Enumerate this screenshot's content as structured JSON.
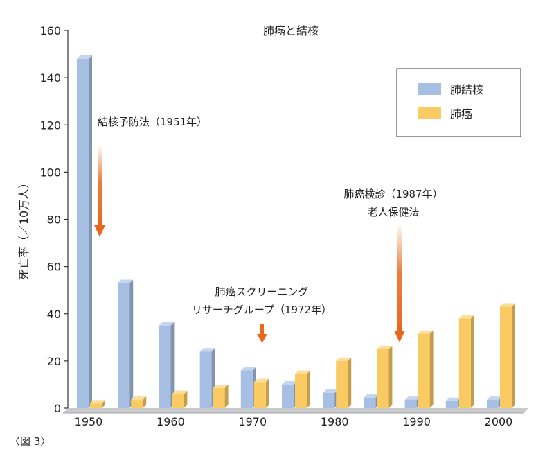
{
  "chart_data": {
    "type": "bar",
    "title": "肺癌と結核",
    "ylabel": "死亡率（／10万人）",
    "xlabel": "",
    "ylim": [
      0,
      160
    ],
    "yticks": [
      0,
      20,
      40,
      60,
      80,
      100,
      120,
      140,
      160
    ],
    "xtick_labels": [
      "1950",
      "1960",
      "1970",
      "1980",
      "1990",
      "2000"
    ],
    "categories": [
      "1950",
      "1955",
      "1960",
      "1965",
      "1970",
      "1975",
      "1980",
      "1985",
      "1990",
      "1995",
      "2000"
    ],
    "series": [
      {
        "name": "肺結核",
        "color": "#a6bfe3",
        "values": [
          148,
          53,
          35,
          24,
          16,
          10,
          6.5,
          4.5,
          3.5,
          3,
          3.5
        ]
      },
      {
        "name": "肺癌",
        "color": "#fbcb63",
        "values": [
          2,
          3.5,
          6,
          8.5,
          11,
          14.5,
          20,
          25,
          31.5,
          38,
          43
        ]
      }
    ],
    "legend_position": "top-right",
    "grid": false,
    "annotations": [
      {
        "lines": [
          "結核予防法（1951年）"
        ],
        "arrow": "down"
      },
      {
        "lines": [
          "肺癌スクリーニング",
          "リサーチグループ（1972年）"
        ],
        "arrow": "down"
      },
      {
        "lines": [
          "肺癌検診（1987年）",
          "老人保健法"
        ],
        "arrow": "down"
      }
    ],
    "arrow_color": "#e8691d"
  },
  "figure_caption": "〈図 3〉"
}
